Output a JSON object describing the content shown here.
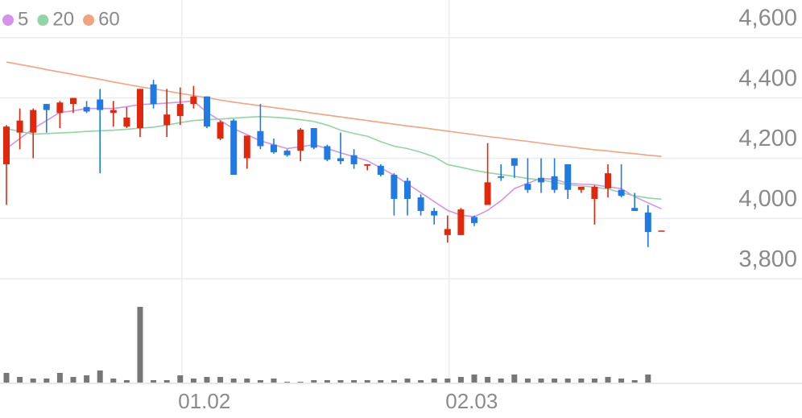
{
  "chart_data": {
    "type": "candlestick",
    "categories": [
      null,
      null,
      null,
      null,
      null,
      null,
      null,
      null,
      null,
      null,
      null,
      null,
      null,
      "01.02",
      null,
      null,
      null,
      null,
      null,
      null,
      null,
      null,
      null,
      null,
      null,
      null,
      null,
      null,
      null,
      null,
      null,
      null,
      null,
      "02.03",
      null,
      null,
      null,
      null,
      null,
      null,
      null,
      null,
      null,
      null,
      null,
      null,
      null,
      null,
      null,
      null
    ],
    "open": [
      4180,
      4285,
      4285,
      4380,
      4350,
      4380,
      4370,
      4395,
      4350,
      4305,
      4300,
      4445,
      4310,
      4340,
      4380,
      4405,
      4265,
      4325,
      4200,
      4290,
      4245,
      4225,
      4225,
      4300,
      4240,
      4200,
      4210,
      4175,
      4175,
      4145,
      4125,
      4070,
      4025,
      3945,
      3945,
      4005,
      4045,
      4140,
      4200,
      4115,
      4135,
      4140,
      4180,
      4095,
      4065,
      4100,
      4095,
      4035,
      4020,
      3958
    ],
    "high": [
      4310,
      4365,
      4365,
      4380,
      4390,
      4400,
      4390,
      4430,
      4390,
      4370,
      4430,
      4460,
      4430,
      4435,
      4440,
      4405,
      4325,
      4330,
      4275,
      4380,
      4265,
      4230,
      4300,
      4300,
      4245,
      4285,
      4230,
      4180,
      4180,
      4150,
      4135,
      4080,
      4035,
      4010,
      4035,
      4010,
      4250,
      4180,
      4200,
      4200,
      4200,
      4200,
      4180,
      4105,
      4110,
      4180,
      4180,
      4085,
      4045,
      3960
    ],
    "low": [
      4045,
      4230,
      4200,
      4285,
      4300,
      4350,
      4350,
      4150,
      4305,
      4300,
      4270,
      4365,
      4270,
      4310,
      4365,
      4300,
      4260,
      4145,
      4165,
      4230,
      4215,
      4205,
      4190,
      4230,
      4190,
      4180,
      4165,
      4160,
      4140,
      4010,
      4010,
      4010,
      3980,
      3920,
      3945,
      3975,
      4045,
      4125,
      4135,
      4085,
      4085,
      4085,
      4065,
      4085,
      3980,
      4070,
      4070,
      4025,
      3905,
      3958
    ],
    "close": [
      4305,
      4325,
      4360,
      4360,
      4385,
      4400,
      4355,
      4360,
      4360,
      4335,
      4430,
      4380,
      4345,
      4380,
      4405,
      4305,
      4320,
      4145,
      4275,
      4240,
      4220,
      4210,
      4295,
      4235,
      4195,
      4190,
      4180,
      4180,
      4145,
      4065,
      4065,
      4025,
      4010,
      3965,
      4030,
      3985,
      4120,
      4135,
      4175,
      4095,
      4120,
      4095,
      4095,
      4105,
      4105,
      4150,
      4075,
      4025,
      3955,
      3960
    ],
    "up_color": "#e2280c",
    "down_color": "#1f7ae3",
    "series": [
      {
        "name": "5",
        "color": "#d592ea",
        "values": [
          4232,
          4265,
          4298,
          4325,
          4352,
          4357,
          4365,
          4365,
          4365,
          4371,
          4378,
          4380,
          4383,
          4386,
          4390,
          4352,
          4325,
          4298,
          4278,
          4258,
          4245,
          4232,
          4238,
          4245,
          4232,
          4218,
          4205,
          4192,
          4168,
          4144,
          4115,
          4086,
          4056,
          4027,
          4011,
          4006,
          4027,
          4059,
          4099,
          4117,
          4133,
          4130,
          4117,
          4114,
          4112,
          4105,
          4099,
          4072,
          4052,
          4032
        ]
      },
      {
        "name": "20",
        "color": "#8fd6a3",
        "values": [
          4298,
          4289,
          4280,
          4282,
          4284,
          4286,
          4289,
          4291,
          4293,
          4296,
          4300,
          4303,
          4310,
          4318,
          4325,
          4328,
          4330,
          4333,
          4336,
          4338,
          4336,
          4333,
          4328,
          4322,
          4310,
          4293,
          4282,
          4273,
          4255,
          4240,
          4232,
          4220,
          4205,
          4179,
          4170,
          4160,
          4152,
          4146,
          4140,
          4133,
          4128,
          4120,
          4112,
          4108,
          4104,
          4098,
          4086,
          4075,
          4068,
          4064
        ]
      },
      {
        "name": "60",
        "color": "#f3a37f",
        "values": [
          4519,
          4511,
          4503,
          4494,
          4486,
          4478,
          4470,
          4462,
          4453,
          4445,
          4437,
          4430,
          4423,
          4415,
          4408,
          4401,
          4393,
          4386,
          4380,
          4374,
          4368,
          4362,
          4356,
          4349,
          4343,
          4337,
          4331,
          4325,
          4319,
          4313,
          4307,
          4302,
          4296,
          4290,
          4284,
          4278,
          4272,
          4267,
          4261,
          4256,
          4250,
          4244,
          4239,
          4233,
          4228,
          4224,
          4219,
          4215,
          4210,
          4206
        ]
      }
    ],
    "volume": [
      12,
      7,
      5,
      5,
      12,
      7,
      9,
      15,
      5,
      3,
      94,
      3,
      3,
      9,
      5,
      7,
      7,
      5,
      5,
      3,
      5,
      1,
      1,
      3,
      3,
      3,
      3,
      3,
      3,
      3,
      5,
      3,
      5,
      5,
      7,
      10,
      7,
      5,
      10,
      5,
      5,
      5,
      5,
      5,
      5,
      7,
      5,
      3,
      10,
      0
    ],
    "volume_color": "#777777",
    "ylim": [
      3795,
      4725
    ],
    "yticks": [
      {
        "value": 3800,
        "label": "3,800"
      },
      {
        "value": 4000,
        "label": "4,000"
      },
      {
        "value": 4200,
        "label": "4,200"
      },
      {
        "value": 4400,
        "label": "4,400"
      },
      {
        "value": 4600,
        "label": "4,600"
      }
    ],
    "grid": true
  }
}
